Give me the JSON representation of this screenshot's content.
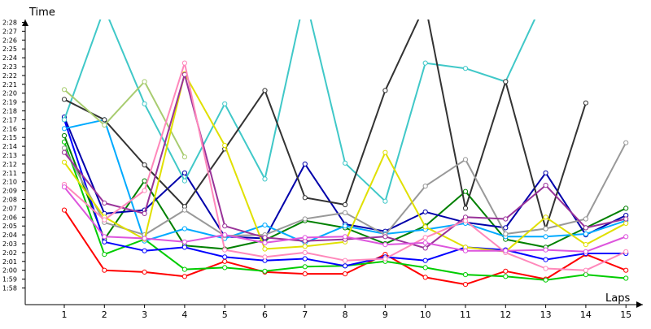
{
  "chart_data": {
    "type": "line",
    "title": "",
    "xlabel": "Laps",
    "ylabel": "Time",
    "x": [
      1,
      2,
      3,
      4,
      5,
      6,
      7,
      8,
      9,
      10,
      11,
      12,
      13,
      14,
      15
    ],
    "ylim": [
      "1:56",
      "2:30"
    ],
    "y_ticks": [
      "1:58",
      "1:59",
      "2:00",
      "2:01",
      "2:02",
      "2:03",
      "2:04",
      "2:05",
      "2:06",
      "2:07",
      "2:08",
      "2:09",
      "2:10",
      "2:11",
      "2:12",
      "2:13",
      "2:14",
      "2:15",
      "2:16",
      "2:17",
      "2:18",
      "2:19",
      "2:20",
      "2:21",
      "2:22",
      "2:23",
      "2:24",
      "2:25",
      "2:26",
      "2:27",
      "2:28"
    ],
    "grid": false,
    "legend": "none",
    "series": [
      {
        "color": "#ff0000",
        "values": [
          "2:06.8",
          "2:00.0",
          "1:59.8",
          "1:59.3",
          "2:01.0",
          "1:59.8",
          "1:59.6",
          "1:59.6",
          "2:01.8",
          "1:59.2",
          "1:58.4",
          "1:59.9",
          "1:59.0",
          "2:01.8",
          "2:00.0"
        ]
      },
      {
        "color": "#00cc00",
        "values": [
          "2:14.5",
          "2:01.8",
          "2:03.5",
          "2:00.1",
          "2:00.3",
          "1:59.9",
          "2:00.4",
          "2:00.5",
          "2:01.0",
          "2:00.3",
          "1:59.5",
          "1:59.3",
          "1:58.9",
          "1:59.5",
          "1:59.1"
        ]
      },
      {
        "color": "#008000",
        "values": [
          "2:15.2",
          "2:03.5",
          "2:10.1",
          "2:02.8",
          "2:02.4",
          "2:03.4",
          "2:05.6",
          "2:04.8",
          "2:03.0",
          "2:05.0",
          "2:08.9",
          "2:03.5",
          "2:02.6",
          "2:04.8",
          "2:07.0"
        ]
      },
      {
        "color": "#0000aa",
        "values": [
          "2:17.3",
          "2:06.4",
          "2:06.8",
          "2:11.0",
          "2:03.8",
          "2:03.6",
          "2:12.0",
          "2:05.2",
          "2:04.4",
          "2:06.6",
          "2:05.4",
          "2:04.8",
          "2:11.0",
          "2:04.0",
          "2:06.2"
        ]
      },
      {
        "color": "#0000ff",
        "values": [
          "2:17.0",
          "2:03.2",
          "2:02.2",
          "2:02.6",
          "2:01.5",
          "2:01.1",
          "2:01.3",
          "2:00.5",
          "2:01.5",
          "2:01.1",
          "2:02.6",
          "2:02.3",
          "2:01.2",
          "2:01.9",
          "2:01.9"
        ]
      },
      {
        "color": "#00aaff",
        "values": [
          "2:16.0",
          "2:17.0",
          "2:03.3",
          "2:04.7",
          "2:03.6",
          "2:05.1",
          "2:03.1",
          "2:05.0",
          "2:04.1",
          "2:04.6",
          "2:05.3",
          "2:03.8",
          "2:03.8",
          "2:04.1",
          "2:05.6"
        ]
      },
      {
        "color": "#40c8c8",
        "values": [
          "2:17.0",
          "2:29.6",
          "2:18.8",
          "2:10.1",
          "2:18.8",
          "2:10.3",
          "2:31.0",
          "2:12.1",
          "2:07.8",
          "2:23.4",
          "2:22.8",
          "2:21.3",
          "2:31.0",
          "",
          ""
        ]
      },
      {
        "color": "#333333",
        "values": [
          "2:19.3",
          "2:17.0",
          "2:11.9",
          "2:07.2",
          "2:13.7",
          "2:20.3",
          "2:08.2",
          "2:07.4",
          "2:20.3",
          "2:30.0",
          "2:07.0",
          "2:21.3",
          "2:04.7",
          "2:18.9",
          ""
        ]
      },
      {
        "color": "#999999",
        "values": [
          "2:13.8",
          "2:05.4",
          "2:04.0",
          "2:06.8",
          "2:03.9",
          "2:04.0",
          "2:05.8",
          "2:06.5",
          "2:04.0",
          "2:09.5",
          "2:12.5",
          "2:04.1",
          "2:04.7",
          "2:05.8",
          "2:14.4"
        ]
      },
      {
        "color": "#a8cc70",
        "values": [
          "2:20.4",
          "2:16.4",
          "2:21.3",
          "2:12.8",
          "",
          "",
          "",
          "",
          "",
          "",
          "",
          "",
          "",
          "",
          ""
        ]
      },
      {
        "color": "#e0e000",
        "values": [
          "2:12.2",
          "2:06.0",
          "2:03.5",
          "2:22.2",
          "2:14.1",
          "2:02.4",
          "2:02.7",
          "2:03.2",
          "2:13.3",
          "2:04.9",
          "2:02.6",
          "2:02.1",
          "2:06.0",
          "2:02.9",
          "2:05.3"
        ]
      },
      {
        "color": "#993399",
        "values": [
          "2:13.3",
          "2:07.6",
          "2:06.4",
          "2:22.1",
          "2:05.0",
          "2:03.7",
          "2:03.3",
          "2:03.5",
          "2:03.8",
          "2:02.5",
          "2:06.0",
          "2:05.8",
          "2:09.6",
          "2:04.8",
          "2:05.8"
        ]
      },
      {
        "color": "#ff88bb",
        "values": [
          "2:09.7",
          "2:05.7",
          "2:09.0",
          "2:23.4",
          "2:02.3",
          "2:01.5",
          "2:02.0",
          "2:01.1",
          "2:01.3",
          "2:03.7",
          "2:05.6",
          "2:02.0",
          "2:00.2",
          "2:00.0",
          "2:02.1"
        ]
      },
      {
        "color": "#dd55dd",
        "values": [
          "2:09.4",
          "2:03.8",
          "2:03.6",
          "2:03.2",
          "2:04.0",
          "2:03.1",
          "2:03.7",
          "2:03.8",
          "2:02.9",
          "2:03.1",
          "2:02.2",
          "2:02.2",
          "2:02.3",
          "2:02.1",
          "2:03.8"
        ]
      }
    ]
  }
}
